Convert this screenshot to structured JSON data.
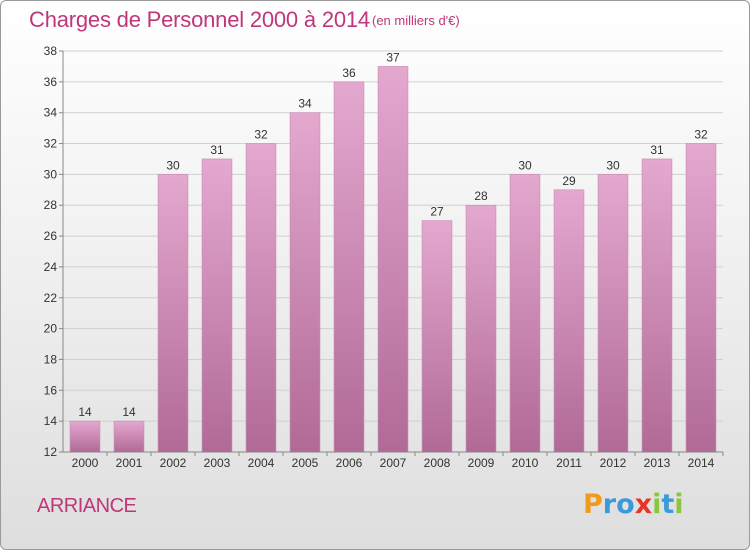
{
  "header": {
    "title": "Charges de Personnel 2000 à 2014",
    "subtitle": "(en milliers d'€)"
  },
  "commune": "ARRIANCE",
  "logo": {
    "text": "Proxiti",
    "letters": [
      {
        "ch": "P",
        "color": "#f29a1e"
      },
      {
        "ch": "r",
        "color": "#3b9ad9"
      },
      {
        "ch": "o",
        "color": "#3b9ad9"
      },
      {
        "ch": "x",
        "color": "#e8332a"
      },
      {
        "ch": "i",
        "color": "#8cc63f"
      },
      {
        "ch": "t",
        "color": "#3b9ad9"
      },
      {
        "ch": "i",
        "color": "#8cc63f"
      }
    ]
  },
  "colors": {
    "text_accent": "#c0367a",
    "bar_top": "#e4a8cf",
    "bar_bottom": "#b06a96"
  },
  "chart_data": {
    "type": "bar",
    "title": "Charges de Personnel 2000 à 2014",
    "subtitle": "(en milliers d'€)",
    "xlabel": "",
    "ylabel": "",
    "categories": [
      "2000",
      "2001",
      "2002",
      "2003",
      "2004",
      "2005",
      "2006",
      "2007",
      "2008",
      "2009",
      "2010",
      "2011",
      "2012",
      "2013",
      "2014"
    ],
    "values": [
      14,
      14,
      30,
      31,
      32,
      34,
      36,
      37,
      27,
      28,
      30,
      29,
      30,
      31,
      32
    ],
    "ylim": [
      12,
      38
    ],
    "yticks": [
      12,
      14,
      16,
      18,
      20,
      22,
      24,
      26,
      28,
      30,
      32,
      34,
      36,
      38
    ],
    "grid": true,
    "legend": "none"
  }
}
